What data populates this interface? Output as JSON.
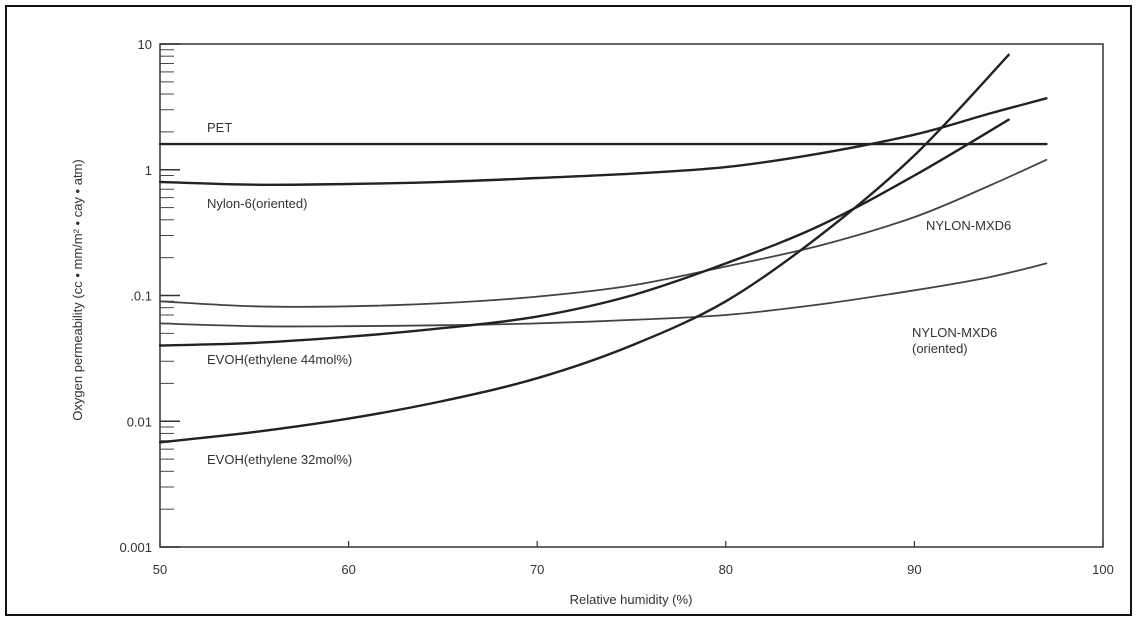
{
  "chart_data": {
    "type": "line",
    "title": "",
    "xlabel": "Relative humidity (%)",
    "ylabel": "Oxygen permeability (cc • mm/m² • cay • atm)",
    "xlim": [
      50,
      100
    ],
    "ylim": [
      0.001,
      10
    ],
    "yscale": "log",
    "grid": false,
    "x_ticks": [
      {
        "value": 50,
        "label": "50"
      },
      {
        "value": 60,
        "label": "60"
      },
      {
        "value": 70,
        "label": "70"
      },
      {
        "value": 80,
        "label": "80"
      },
      {
        "value": 90,
        "label": "90"
      },
      {
        "value": 100,
        "label": "100"
      }
    ],
    "y_ticks": [
      {
        "value": 10,
        "label": "10"
      },
      {
        "value": 1,
        "label": "1"
      },
      {
        "value": 0.1,
        "label": ".0.1"
      },
      {
        "value": 0.01,
        "label": "0.01"
      },
      {
        "value": 0.001,
        "label": "0.001"
      }
    ],
    "series": [
      {
        "name": "PET",
        "x": [
          50,
          97
        ],
        "y": [
          1.6,
          1.6
        ],
        "style": "bold"
      },
      {
        "name": "Nylon-6(oriented)",
        "x": [
          50,
          55,
          60,
          65,
          70,
          75,
          80,
          85,
          90,
          94,
          97
        ],
        "y": [
          0.8,
          0.76,
          0.77,
          0.8,
          0.86,
          0.93,
          1.05,
          1.35,
          1.9,
          2.8,
          3.7
        ],
        "style": "bold"
      },
      {
        "name": "NYLON-MXD6",
        "x": [
          50,
          55,
          60,
          65,
          70,
          75,
          80,
          85,
          90,
          94,
          97
        ],
        "y": [
          0.09,
          0.082,
          0.082,
          0.087,
          0.098,
          0.12,
          0.17,
          0.25,
          0.42,
          0.75,
          1.2
        ],
        "style": "light"
      },
      {
        "name": "NYLON-MXD6\n(oriented)",
        "x": [
          50,
          55,
          60,
          65,
          70,
          75,
          80,
          85,
          90,
          94,
          97
        ],
        "y": [
          0.06,
          0.057,
          0.057,
          0.058,
          0.06,
          0.064,
          0.07,
          0.085,
          0.11,
          0.14,
          0.18
        ],
        "style": "light"
      },
      {
        "name": "EVOH(ethylene 44mol%)",
        "x": [
          50,
          55,
          60,
          65,
          70,
          75,
          80,
          85,
          90,
          95
        ],
        "y": [
          0.04,
          0.042,
          0.047,
          0.055,
          0.068,
          0.1,
          0.18,
          0.36,
          0.9,
          2.5
        ],
        "style": "bold"
      },
      {
        "name": "EVOH(ethylene 32mol%)",
        "x": [
          50,
          55,
          60,
          65,
          70,
          75,
          80,
          85,
          90,
          95
        ],
        "y": [
          0.0068,
          0.0082,
          0.0105,
          0.0145,
          0.022,
          0.04,
          0.09,
          0.3,
          1.3,
          8.2
        ],
        "style": "bold"
      }
    ]
  }
}
